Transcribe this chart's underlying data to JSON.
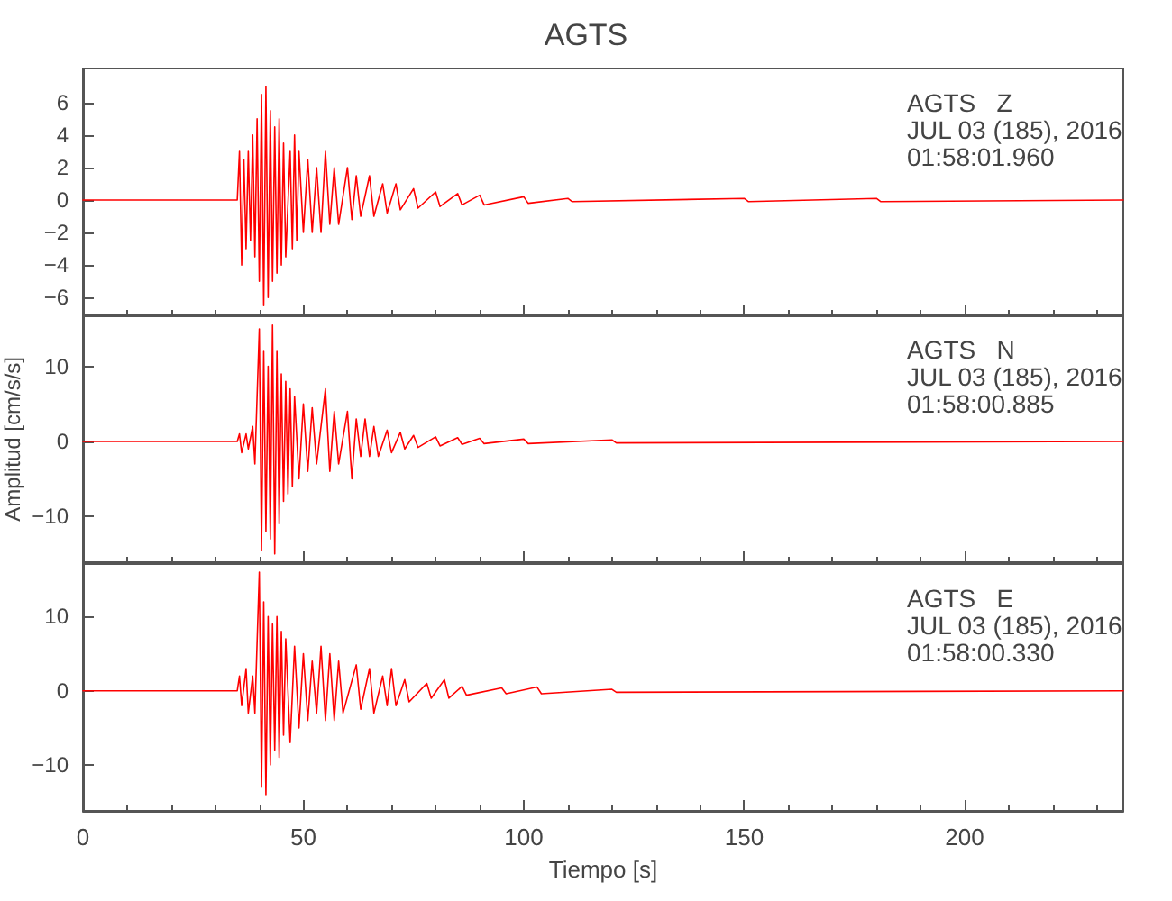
{
  "chart_data": [
    {
      "type": "line",
      "title": "AGTS",
      "annotations": [
        "AGTS   Z",
        "JUL 03 (185), 2016",
        "01:58:01.960"
      ],
      "xlim": [
        0,
        236
      ],
      "xticks": [
        0,
        50,
        100,
        150,
        200
      ],
      "ylim": [
        -7.1,
        8.1
      ],
      "yticks": [
        -6,
        -4,
        -2,
        0,
        2,
        4,
        6
      ],
      "tick_labels": "y",
      "grid": false,
      "marker": "none",
      "line_style": "solid",
      "series": [
        {
          "color": "#ff0000",
          "x": [
            0,
            10,
            20,
            35,
            35.5,
            36,
            36.5,
            37,
            37.5,
            38,
            38.5,
            39,
            39.5,
            40,
            40.5,
            41,
            41.5,
            42,
            42.5,
            43,
            43.5,
            44,
            44.5,
            45,
            45.5,
            46,
            47,
            47.5,
            48,
            48.5,
            49,
            50,
            51,
            52,
            53,
            54,
            55,
            56,
            57,
            58,
            60,
            61,
            62,
            63,
            65,
            66,
            68,
            69,
            71,
            72,
            75,
            76,
            80,
            81,
            85,
            86,
            90,
            91,
            100,
            101,
            110,
            111,
            150,
            151,
            180,
            181,
            236
          ],
          "values": [
            0,
            0,
            0,
            0,
            3,
            -4,
            2.5,
            -3,
            3,
            -2.5,
            4,
            -3.5,
            5,
            -5,
            6.5,
            -6.5,
            7,
            -6,
            5.5,
            -5,
            4.5,
            -4.5,
            5,
            -4,
            3.5,
            -3.5,
            3,
            -3,
            4,
            -2.5,
            3,
            -2,
            2.5,
            -2,
            2,
            -2,
            3,
            -1.5,
            2,
            -1.5,
            2,
            -1.2,
            1.5,
            -1,
            1.5,
            -1,
            1,
            -0.8,
            1,
            -0.6,
            0.7,
            -0.5,
            0.5,
            -0.4,
            0.4,
            -0.3,
            0.3,
            -0.3,
            0.2,
            -0.2,
            0.1,
            -0.1,
            0.1,
            -0.1,
            0.1,
            -0.1,
            0
          ]
        }
      ]
    },
    {
      "type": "line",
      "ylabel": "Amplitud [cm/s/s]",
      "annotations": [
        "AGTS   N",
        "JUL 03 (185), 2016",
        "01:58:00.885"
      ],
      "xlim": [
        0,
        236
      ],
      "xticks": [
        0,
        50,
        100,
        150,
        200
      ],
      "ylim": [
        -16.1,
        16.8
      ],
      "yticks": [
        -10,
        0,
        10
      ],
      "tick_labels": "y",
      "grid": false,
      "marker": "none",
      "line_style": "solid",
      "series": [
        {
          "color": "#ff0000",
          "x": [
            0,
            10,
            20,
            35,
            35.5,
            36,
            37,
            37.5,
            38.5,
            39,
            40,
            40.5,
            41,
            41.5,
            42,
            42.5,
            43,
            43.5,
            44,
            44.5,
            45,
            45.5,
            46,
            46.5,
            47,
            47.5,
            48,
            49,
            50,
            51,
            52,
            53,
            55,
            56,
            57,
            58,
            60,
            61,
            62,
            63,
            64,
            65,
            66,
            67,
            69,
            70,
            72,
            73,
            75,
            76,
            80,
            81,
            85,
            86,
            90,
            91,
            100,
            101,
            120,
            121,
            236
          ],
          "values": [
            0,
            0,
            0,
            0,
            1,
            -1.5,
            1,
            -1,
            2,
            -3,
            15,
            -14.5,
            12,
            -12,
            10,
            -13,
            15.5,
            -15,
            12,
            -11,
            9,
            -8,
            8,
            -7,
            7,
            -6,
            6,
            -5,
            5,
            -4,
            4.5,
            -3,
            7,
            -4,
            4,
            -3,
            4,
            -5,
            3,
            -2,
            3,
            -2,
            2,
            -2,
            1.5,
            -1.5,
            1.2,
            -1,
            0.8,
            -0.8,
            0.6,
            -0.6,
            0.5,
            -0.4,
            0.4,
            -0.3,
            0.3,
            -0.3,
            0.2,
            -0.2,
            0
          ]
        }
      ]
    },
    {
      "type": "line",
      "xlabel": "Tiempo [s]",
      "annotations": [
        "AGTS   E",
        "JUL 03 (185), 2016",
        "01:58:00.330"
      ],
      "xlim": [
        0,
        236
      ],
      "xticks": [
        0,
        50,
        100,
        150,
        200
      ],
      "ylim": [
        -16.2,
        17.1
      ],
      "yticks": [
        -10,
        0,
        10
      ],
      "grid": false,
      "marker": "none",
      "line_style": "solid",
      "series": [
        {
          "color": "#ff0000",
          "x": [
            0,
            10,
            20,
            35,
            35.5,
            36,
            37,
            37.5,
            38.5,
            39,
            40,
            40.5,
            41,
            41.5,
            42,
            42.5,
            43,
            43.5,
            44,
            44.5,
            45,
            45.5,
            46,
            47,
            48,
            49,
            50,
            51,
            52,
            53,
            54,
            55,
            56,
            57,
            58,
            59,
            62,
            63,
            65,
            66,
            68,
            69,
            70,
            71,
            73,
            74,
            78,
            79,
            82,
            83,
            86,
            87,
            95,
            96,
            103,
            104,
            120,
            121,
            236
          ],
          "values": [
            0,
            0,
            0,
            0,
            2,
            -2,
            3,
            -3,
            2,
            -3,
            16,
            -13,
            12,
            -14,
            10,
            -10,
            9,
            -8,
            10,
            -9,
            8,
            -6,
            7,
            -7,
            6,
            -5,
            5,
            -4,
            4,
            -3,
            6,
            -4,
            5,
            -4,
            4,
            -3,
            3.5,
            -2.5,
            3,
            -3,
            2,
            -2,
            3,
            -2,
            1.5,
            -1.5,
            1,
            -1,
            1.5,
            -1,
            0.6,
            -0.6,
            0.4,
            -0.4,
            0.5,
            -0.4,
            0.2,
            -0.2,
            0
          ]
        }
      ]
    }
  ]
}
